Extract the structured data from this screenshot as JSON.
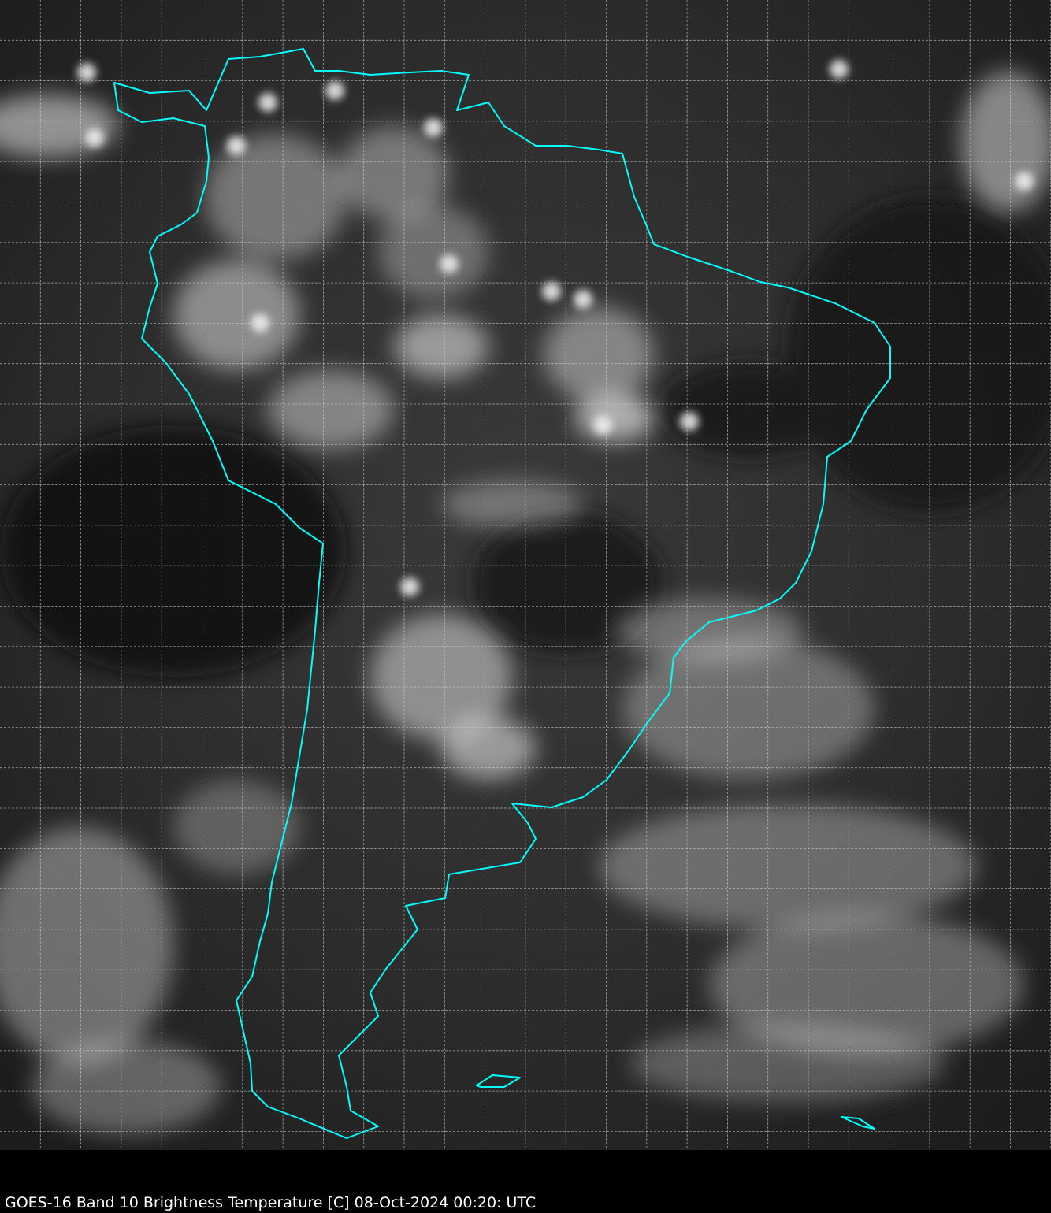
{
  "caption": "GOES-16 Band 10  Brightness Temperature [C] 08-Oct-2024 00:20: UTC",
  "colors": {
    "coastline": "#00ffff",
    "grid": "#d0d0d0",
    "background": "#000000"
  }
}
